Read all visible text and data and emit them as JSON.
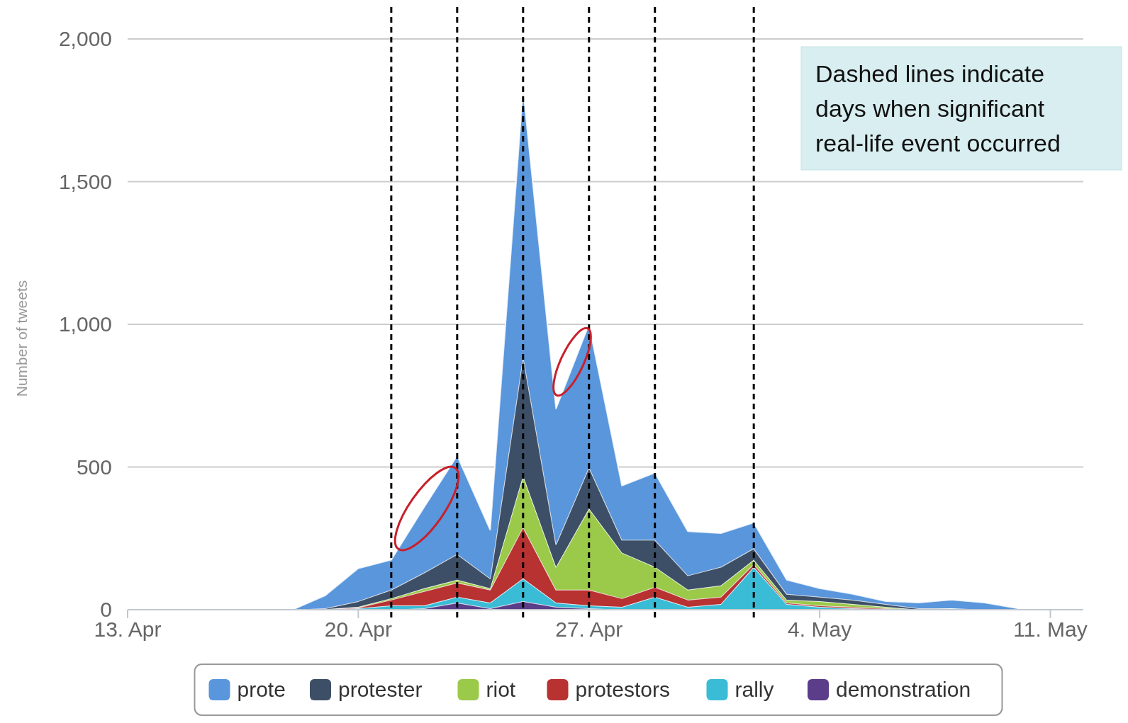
{
  "chart_data": {
    "type": "area",
    "stacked": true,
    "ylabel": "Number of tweets",
    "x": [
      "--04-18",
      "--04-19",
      "--04-20",
      "--04-21",
      "--04-22",
      "--04-23",
      "--04-24",
      "--04-25",
      "--04-26",
      "--04-27",
      "--04-28",
      "--04-29",
      "--04-30",
      "--05-01",
      "--05-02",
      "--05-03",
      "--05-04",
      "--05-05",
      "--05-06",
      "--05-07",
      "--05-08",
      "--05-09",
      "--05-10"
    ],
    "series": [
      {
        "name": "demonstration",
        "color": "#5b3d8a",
        "values": [
          0,
          0,
          0,
          0,
          5,
          25,
          5,
          30,
          10,
          5,
          0,
          0,
          0,
          0,
          0,
          0,
          0,
          0,
          0,
          0,
          0,
          0,
          0
        ]
      },
      {
        "name": "rally",
        "color": "#3bbcd6",
        "values": [
          0,
          0,
          5,
          15,
          10,
          20,
          20,
          80,
          15,
          10,
          10,
          45,
          10,
          20,
          150,
          20,
          10,
          5,
          2,
          0,
          0,
          0,
          0
        ]
      },
      {
        "name": "protestors",
        "color": "#b83232",
        "values": [
          0,
          2,
          3,
          20,
          50,
          50,
          45,
          180,
          45,
          55,
          30,
          35,
          25,
          25,
          10,
          5,
          5,
          5,
          3,
          0,
          0,
          0,
          0
        ]
      },
      {
        "name": "riot",
        "color": "#9bc94a",
        "values": [
          0,
          0,
          2,
          5,
          10,
          10,
          5,
          180,
          80,
          285,
          160,
          70,
          35,
          40,
          15,
          10,
          15,
          10,
          5,
          0,
          5,
          0,
          0
        ]
      },
      {
        "name": "protester",
        "color": "#3d4f66",
        "values": [
          0,
          3,
          20,
          30,
          55,
          90,
          35,
          420,
          80,
          145,
          45,
          95,
          50,
          65,
          40,
          20,
          15,
          15,
          10,
          5,
          0,
          0,
          0
        ]
      },
      {
        "name": "prote",
        "color": "#5a96dc",
        "values": [
          0,
          45,
          115,
          105,
          230,
          345,
          170,
          935,
          475,
          500,
          190,
          235,
          155,
          118,
          90,
          50,
          30,
          20,
          10,
          20,
          30,
          25,
          5
        ]
      }
    ],
    "xlim": [
      "--04-13",
      "--05-12"
    ],
    "xticks": [
      {
        "value": "--04-13",
        "label": "13. Apr"
      },
      {
        "value": "--04-20",
        "label": "20. Apr"
      },
      {
        "value": "--04-27",
        "label": "27. Apr"
      },
      {
        "value": "--05-04",
        "label": "4. May"
      },
      {
        "value": "--05-11",
        "label": "11. May"
      }
    ],
    "ylim": [
      0,
      2000
    ],
    "yticks": [
      0,
      500,
      {
        "value": 1000,
        "label": "1,000"
      },
      {
        "value": 1500,
        "label": "1,500"
      },
      {
        "value": 2000,
        "label": "2,000"
      }
    ],
    "grid": "y",
    "legend": "bottom",
    "ref_lines": [
      {
        "axis": "x",
        "value": "--04-21",
        "color": "#000000",
        "line_style": "dashed"
      },
      {
        "axis": "x",
        "value": "--04-23",
        "color": "#000000",
        "line_style": "dashed"
      },
      {
        "axis": "x",
        "value": "--04-25",
        "color": "#000000",
        "line_style": "dashed"
      },
      {
        "axis": "x",
        "value": "--04-27",
        "color": "#000000",
        "line_style": "dashed"
      },
      {
        "axis": "x",
        "value": "--04-29",
        "color": "#000000",
        "line_style": "dashed"
      },
      {
        "axis": "x",
        "value": "--05-02",
        "color": "#000000",
        "line_style": "dashed"
      }
    ],
    "annotations": [
      "Dashed lines indicate days when significant real-life event occurred"
    ]
  }
}
